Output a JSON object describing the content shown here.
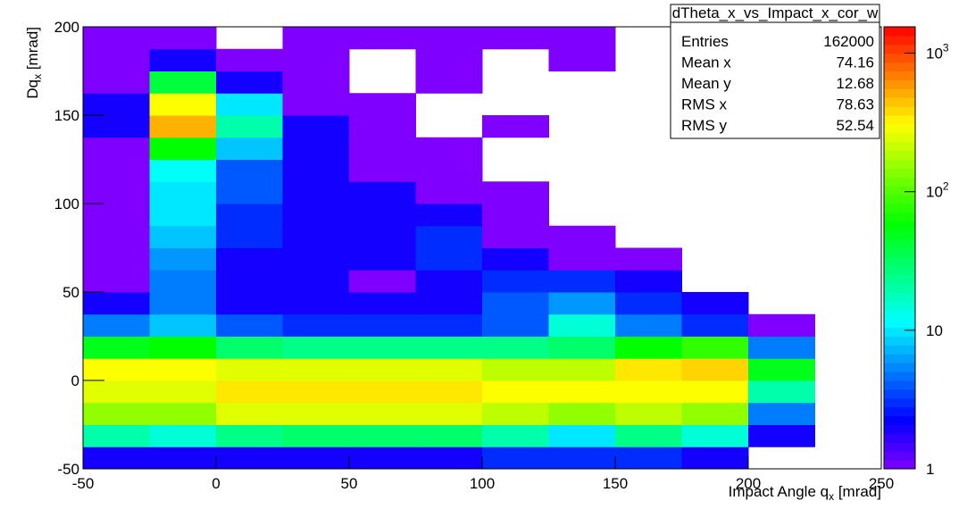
{
  "chart_data": {
    "type": "heatmap",
    "x_label": {
      "text": "Impact Angle q",
      "sub": "x",
      "suffix": " [mrad]"
    },
    "y_label": {
      "text": "Dq",
      "sub": "x",
      "suffix": " [mrad]"
    },
    "xlim": [
      -50,
      250
    ],
    "xticks": [
      -50,
      0,
      50,
      100,
      150,
      200,
      250
    ],
    "ylim": [
      -50,
      200
    ],
    "yticks": [
      -50,
      0,
      50,
      100,
      150,
      200
    ],
    "x_bins": [
      -50,
      -25,
      0,
      25,
      50,
      75,
      100,
      125,
      150,
      175,
      200,
      225
    ],
    "y_bins": [
      -50,
      -37.5,
      -25,
      -12.5,
      0,
      12.5,
      25,
      37.5,
      50,
      62.5,
      75,
      87.5,
      100,
      112.5,
      125,
      137.5,
      150,
      162.5,
      175,
      187.5,
      200
    ],
    "z": [
      [
        2,
        2,
        2,
        2,
        2,
        2,
        3,
        3,
        3,
        2,
        null
      ],
      [
        20,
        15,
        25,
        30,
        30,
        30,
        20,
        10,
        25,
        15,
        2
      ],
      [
        150,
        150,
        250,
        250,
        250,
        250,
        200,
        150,
        200,
        150,
        5
      ],
      [
        250,
        250,
        350,
        350,
        350,
        350,
        300,
        300,
        300,
        300,
        20
      ],
      [
        300,
        300,
        250,
        250,
        250,
        250,
        200,
        200,
        350,
        400,
        50
      ],
      [
        50,
        60,
        30,
        25,
        25,
        25,
        25,
        30,
        60,
        80,
        5
      ],
      [
        5,
        8,
        4,
        3,
        3,
        3,
        4,
        15,
        5,
        3,
        1
      ],
      [
        2,
        5,
        2,
        2,
        2,
        2,
        4,
        6,
        3,
        2,
        null
      ],
      [
        1,
        5,
        2,
        2,
        1,
        2,
        3,
        3,
        2,
        null,
        null
      ],
      [
        1,
        6,
        2,
        2,
        2,
        3,
        2,
        1,
        1,
        null,
        null
      ],
      [
        1,
        8,
        3,
        2,
        2,
        3,
        1,
        1,
        null,
        null,
        null
      ],
      [
        1,
        10,
        3,
        2,
        2,
        2,
        1,
        null,
        null,
        null,
        null
      ],
      [
        1,
        10,
        4,
        2,
        2,
        1,
        1,
        null,
        null,
        null,
        null
      ],
      [
        1,
        12,
        4,
        2,
        1,
        1,
        null,
        null,
        null,
        null,
        null
      ],
      [
        1,
        60,
        8,
        2,
        1,
        1,
        null,
        null,
        null,
        null,
        null
      ],
      [
        2,
        500,
        20,
        2,
        1,
        null,
        1,
        null,
        null,
        null,
        null
      ],
      [
        2,
        300,
        10,
        1,
        1,
        null,
        null,
        null,
        null,
        null,
        null
      ],
      [
        1,
        40,
        2,
        1,
        null,
        1,
        null,
        null,
        null,
        null,
        null
      ],
      [
        1,
        2,
        1,
        1,
        null,
        1,
        null,
        1,
        null,
        null,
        null
      ],
      [
        1,
        1,
        null,
        1,
        1,
        1,
        1,
        1,
        null,
        null,
        null
      ]
    ],
    "zscale": "log",
    "zlim": [
      1,
      1550
    ],
    "zticks": [
      1,
      10,
      {
        "value": 100,
        "label": "10",
        "sup": "2"
      },
      {
        "value": 1000,
        "label": "10",
        "sup": "3"
      }
    ],
    "stats": {
      "name": "dTheta_x_vs_Impact_x_cor_w",
      "rows": [
        [
          "Entries",
          162000
        ],
        [
          "Mean x",
          74.16
        ],
        [
          "Mean y",
          12.68
        ],
        [
          "RMS x",
          78.63
        ],
        [
          "RMS y",
          52.54
        ]
      ]
    }
  }
}
